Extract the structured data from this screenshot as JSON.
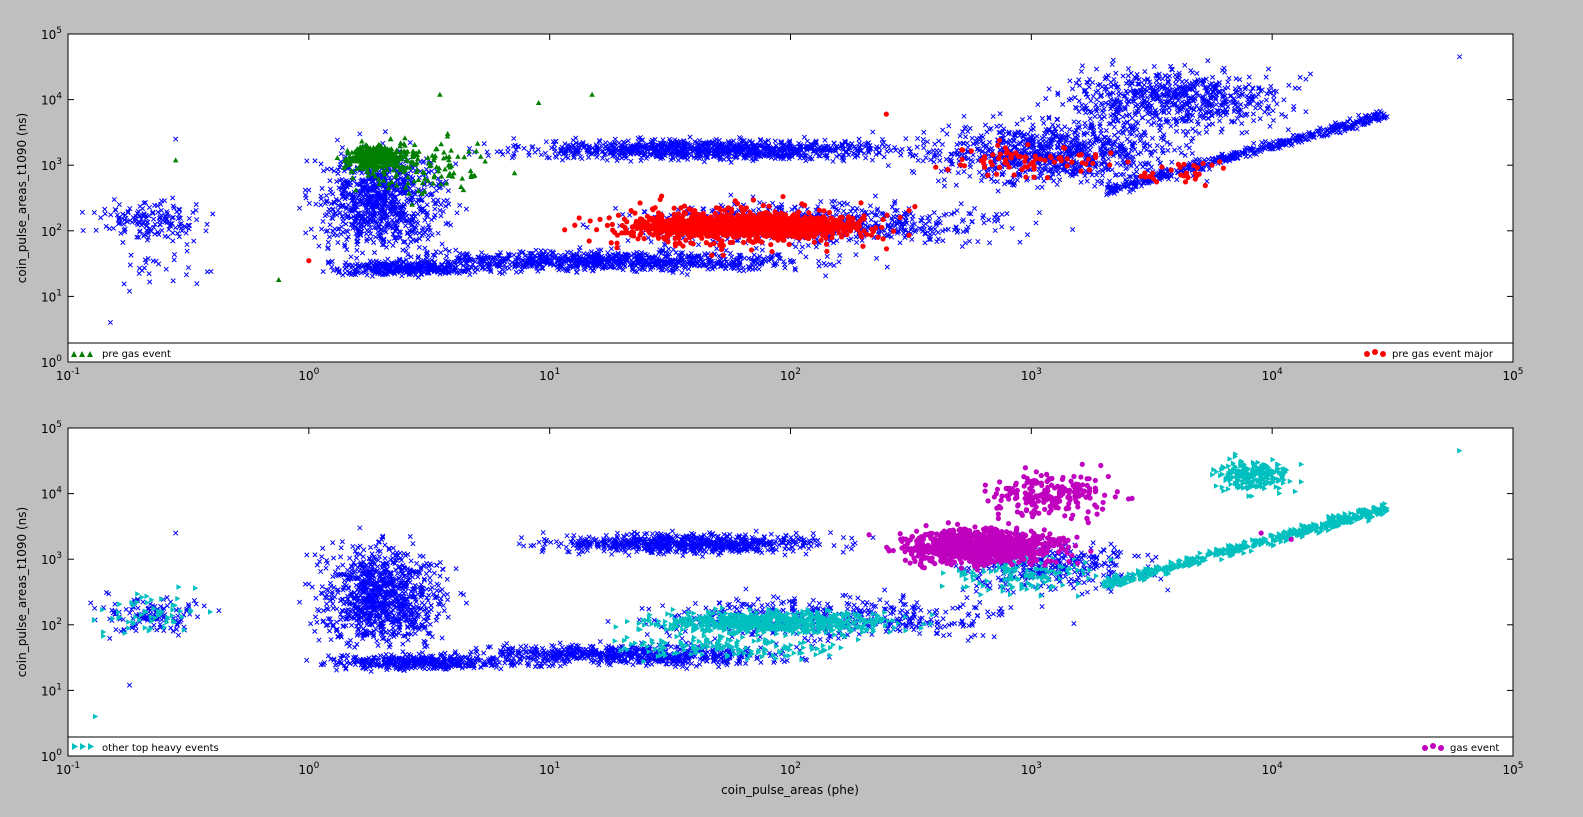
{
  "figure": {
    "background": "#bfbfbf",
    "panel_background": "#ffffff"
  },
  "chart_data": [
    {
      "type": "scatter",
      "panel": "top",
      "xlabel": "",
      "ylabel": "coin_pulse_areas_t1090 (ns)",
      "xscale": "log",
      "yscale": "log",
      "xlim": [
        0.1,
        100000
      ],
      "ylim": [
        1,
        100000
      ],
      "x_ticks": [
        "10^-1",
        "10^0",
        "10^1",
        "10^2",
        "10^3",
        "10^4",
        "10^5"
      ],
      "y_ticks": [
        "10^0",
        "10^1",
        "10^2",
        "10^3",
        "10^4",
        "10^5"
      ],
      "grid": false,
      "series": [
        {
          "name": "",
          "marker": "x",
          "color": "#0000ff",
          "clusters": [
            {
              "x": [
                0.1,
                0.5
              ],
              "y": [
                50,
                400
              ],
              "count": 160
            },
            {
              "x": [
                0.12,
                0.5
              ],
              "y": [
                10,
                60
              ],
              "count": 25
            },
            {
              "x": [
                0.8,
                5
              ],
              "y": [
                20,
                4000
              ],
              "count": 900
            },
            {
              "x": [
                0.8,
                8
              ],
              "y": [
                18,
                40
              ],
              "count": 350
            },
            {
              "x": [
                1,
                300
              ],
              "y": [
                20,
                60
              ],
              "count": 900
            },
            {
              "x": [
                3,
                800
              ],
              "y": [
                1000,
                3000
              ],
              "count": 1000
            },
            {
              "x": [
                8,
                2000
              ],
              "y": [
                40,
                400
              ],
              "count": 700
            },
            {
              "x": [
                200,
                8000
              ],
              "y": [
                300,
                8000
              ],
              "count": 900
            },
            {
              "x": [
                800,
                20000
              ],
              "y": [
                2000,
                50000
              ],
              "count": 700
            },
            {
              "x": [
                2000,
                30000
              ],
              "y": [
                400,
                6000
              ],
              "count": 500,
              "diagonal": true
            }
          ],
          "points": [
            [
              0.15,
              4
            ],
            [
              0.28,
              2500
            ],
            [
              0.18,
              12
            ],
            [
              60000,
              45000
            ],
            [
              30000,
              5500
            ]
          ]
        },
        {
          "name": "pre gas event",
          "marker": "triangle",
          "color": "#007f00",
          "clusters": [
            {
              "x": [
                1.2,
                3
              ],
              "y": [
                700,
                2500
              ],
              "count": 300
            },
            {
              "x": [
                1,
                8
              ],
              "y": [
                200,
                5000
              ],
              "count": 150
            }
          ],
          "points": [
            [
              3.5,
              12000
            ],
            [
              9,
              9000
            ],
            [
              15,
              12000
            ],
            [
              0.28,
              1200
            ],
            [
              0.75,
              18
            ]
          ]
        },
        {
          "name": "pre gas event major",
          "marker": "circle",
          "color": "#ff0000",
          "clusters": [
            {
              "x": [
                15,
                300
              ],
              "y": [
                70,
                200
              ],
              "count": 1400
            },
            {
              "x": [
                8,
                500
              ],
              "y": [
                35,
                400
              ],
              "count": 400
            },
            {
              "x": [
                300,
                3000
              ],
              "y": [
                500,
                3000
              ],
              "count": 80
            },
            {
              "x": [
                2000,
                8000
              ],
              "y": [
                400,
                1500
              ],
              "count": 30
            }
          ],
          "points": [
            [
              250,
              6000
            ],
            [
              1,
              35
            ]
          ]
        }
      ],
      "legend": [
        {
          "label": "pre gas event",
          "position": "lower-left"
        },
        {
          "label": "pre gas event major",
          "position": "lower-right"
        }
      ]
    },
    {
      "type": "scatter",
      "panel": "bottom",
      "xlabel": "coin_pulse_areas (phe)",
      "ylabel": "coin_pulse_areas_t1090 (ns)",
      "xscale": "log",
      "yscale": "log",
      "xlim": [
        0.1,
        100000
      ],
      "ylim": [
        1,
        100000
      ],
      "x_ticks": [
        "10^-1",
        "10^0",
        "10^1",
        "10^2",
        "10^3",
        "10^4",
        "10^5"
      ],
      "y_ticks": [
        "10^0",
        "10^1",
        "10^2",
        "10^3",
        "10^4",
        "10^5"
      ],
      "grid": false,
      "series": [
        {
          "name": "",
          "marker": "x",
          "color": "#0000ff",
          "clusters": [
            {
              "x": [
                0.1,
                0.5
              ],
              "y": [
                50,
                400
              ],
              "count": 130
            },
            {
              "x": [
                0.8,
                5
              ],
              "y": [
                20,
                4000
              ],
              "count": 1000
            },
            {
              "x": [
                0.8,
                10
              ],
              "y": [
                18,
                40
              ],
              "count": 400
            },
            {
              "x": [
                2,
                200
              ],
              "y": [
                20,
                60
              ],
              "count": 700
            },
            {
              "x": [
                5,
                300
              ],
              "y": [
                1000,
                3000
              ],
              "count": 700
            },
            {
              "x": [
                10,
                2000
              ],
              "y": [
                40,
                400
              ],
              "count": 500
            },
            {
              "x": [
                300,
                5000
              ],
              "y": [
                200,
                3000
              ],
              "count": 350
            }
          ],
          "points": [
            [
              0.18,
              12
            ],
            [
              0.28,
              2500
            ]
          ]
        },
        {
          "name": "other top heavy events",
          "marker": "triangle-right",
          "color": "#00bfbf",
          "clusters": [
            {
              "x": [
                0.1,
                0.5
              ],
              "y": [
                50,
                400
              ],
              "count": 60
            },
            {
              "x": [
                15,
                500
              ],
              "y": [
                60,
                200
              ],
              "count": 700
            },
            {
              "x": [
                10,
                300
              ],
              "y": [
                25,
                80
              ],
              "count": 150
            },
            {
              "x": [
                5000,
                15000
              ],
              "y": [
                8000,
                45000
              ],
              "count": 220
            },
            {
              "x": [
                2000,
                30000
              ],
              "y": [
                400,
                6000
              ],
              "count": 500,
              "diagonal": true
            },
            {
              "x": [
                300,
                3000
              ],
              "y": [
                200,
                2000
              ],
              "count": 150
            }
          ],
          "points": [
            [
              0.13,
              4
            ],
            [
              60000,
              45000
            ],
            [
              30000,
              5500
            ]
          ]
        },
        {
          "name": "gas event",
          "marker": "circle",
          "color": "#bf00bf",
          "clusters": [
            {
              "x": [
                200,
                2000
              ],
              "y": [
                600,
                4000
              ],
              "count": 1000
            },
            {
              "x": [
                500,
                3000
              ],
              "y": [
                3000,
                30000
              ],
              "count": 220
            }
          ],
          "points": [
            [
              9000,
              2500
            ],
            [
              12000,
              2000
            ]
          ]
        }
      ],
      "legend": [
        {
          "label": "other top heavy events",
          "position": "lower-left"
        },
        {
          "label": "gas event",
          "position": "lower-right"
        }
      ]
    }
  ]
}
